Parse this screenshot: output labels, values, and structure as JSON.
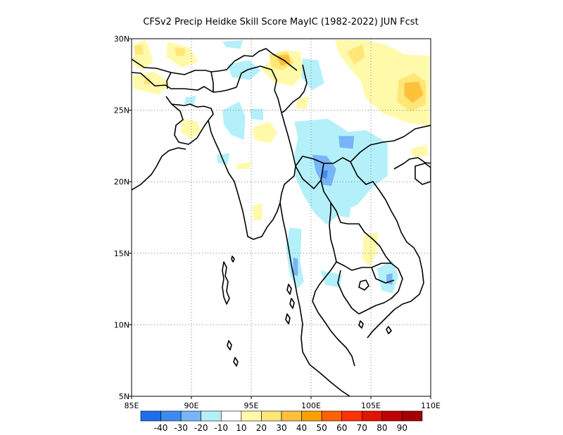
{
  "title": "CFSv2 Precip Heidke Skill Score MayIC (1982-2022) JUN Fcst",
  "map": {
    "lon_range": [
      85,
      110
    ],
    "lat_range": [
      5,
      30
    ],
    "x_ticks": [
      {
        "value": 85,
        "label": "85E"
      },
      {
        "value": 90,
        "label": "90E"
      },
      {
        "value": 95,
        "label": "95E"
      },
      {
        "value": 100,
        "label": "100E"
      },
      {
        "value": 105,
        "label": "105E"
      },
      {
        "value": 110,
        "label": "110E"
      }
    ],
    "y_ticks": [
      {
        "value": 30,
        "label": "30N"
      },
      {
        "value": 25,
        "label": "25N"
      },
      {
        "value": 20,
        "label": "20N"
      },
      {
        "value": 15,
        "label": "15N"
      },
      {
        "value": 10,
        "label": "10N"
      },
      {
        "value": 5,
        "label": "5N"
      }
    ],
    "grid": "dotted"
  },
  "colorbar": {
    "labels": [
      "-40",
      "-30",
      "-20",
      "-10",
      "10",
      "20",
      "30",
      "40",
      "50",
      "60",
      "70",
      "80",
      "90"
    ],
    "colors": [
      "#1e6ee8",
      "#3c8cf0",
      "#78b4f8",
      "#b4f0fa",
      "#ffffff",
      "#fffaaa",
      "#ffe678",
      "#ffc03c",
      "#ffa000",
      "#ff6000",
      "#ff3200",
      "#e11400",
      "#c00000",
      "#a50000"
    ]
  },
  "skill_regions": [
    {
      "level": 10,
      "color": "#fffaaa",
      "pts": [
        [
          85.3,
          29.7
        ],
        [
          86.2,
          29.9
        ],
        [
          86.8,
          28.4
        ],
        [
          85.9,
          27.8
        ],
        [
          85.1,
          28.2
        ]
      ]
    },
    {
      "level": 10,
      "color": "#fffaaa",
      "pts": [
        [
          88.0,
          29.8
        ],
        [
          89.8,
          29.4
        ],
        [
          90.6,
          28.4
        ],
        [
          89.2,
          28.0
        ],
        [
          87.9,
          28.7
        ]
      ]
    },
    {
      "level": 10,
      "color": "#fffaaa",
      "pts": [
        [
          85.1,
          27.4
        ],
        [
          86.9,
          27.7
        ],
        [
          88.2,
          26.9
        ],
        [
          87.3,
          26.1
        ],
        [
          85.2,
          26.5
        ]
      ]
    },
    {
      "level": 10,
      "color": "#fffaaa",
      "pts": [
        [
          89.3,
          24.4
        ],
        [
          90.5,
          24.2
        ],
        [
          90.8,
          23.5
        ],
        [
          89.9,
          23.0
        ],
        [
          89.1,
          23.5
        ]
      ]
    },
    {
      "level": 10,
      "color": "#fffaaa",
      "pts": [
        [
          95.1,
          23.8
        ],
        [
          96.5,
          24.2
        ],
        [
          97.2,
          23.4
        ],
        [
          96.6,
          22.7
        ],
        [
          95.3,
          22.9
        ]
      ]
    },
    {
      "level": 10,
      "color": "#fffaaa",
      "pts": [
        [
          95.8,
          27.9
        ],
        [
          97.6,
          29.2
        ],
        [
          99.1,
          29.1
        ],
        [
          99.4,
          27.6
        ],
        [
          98.5,
          26.7
        ],
        [
          97.0,
          26.9
        ]
      ]
    },
    {
      "level": 10,
      "color": "#fffaaa",
      "pts": [
        [
          98.9,
          25.8
        ],
        [
          99.9,
          26.0
        ],
        [
          99.6,
          25.1
        ],
        [
          98.7,
          25.1
        ]
      ]
    },
    {
      "level": 10,
      "color": "#fffaaa",
      "pts": [
        [
          93.8,
          21.2
        ],
        [
          95.0,
          21.4
        ],
        [
          94.8,
          20.9
        ],
        [
          93.7,
          20.9
        ]
      ]
    },
    {
      "level": 10,
      "color": "#fffaaa",
      "pts": [
        [
          95.1,
          18.3
        ],
        [
          95.9,
          18.5
        ],
        [
          95.9,
          17.3
        ],
        [
          95.2,
          17.3
        ]
      ]
    },
    {
      "level": 10,
      "color": "#fffaaa",
      "pts": [
        [
          101.2,
          22.8
        ],
        [
          102.1,
          23.0
        ],
        [
          101.9,
          22.2
        ],
        [
          101.0,
          22.3
        ]
      ]
    },
    {
      "level": 10,
      "color": "#fffaaa",
      "pts": [
        [
          102.0,
          29.9
        ],
        [
          104.5,
          29.9
        ],
        [
          106.2,
          29.6
        ],
        [
          107.8,
          28.9
        ],
        [
          109.9,
          28.8
        ],
        [
          109.9,
          23.9
        ],
        [
          108.2,
          24.1
        ],
        [
          106.0,
          24.8
        ],
        [
          104.6,
          25.8
        ],
        [
          104.2,
          27.0
        ],
        [
          103.0,
          28.2
        ],
        [
          102.3,
          29.0
        ]
      ]
    },
    {
      "level": 10,
      "color": "#fffaaa",
      "pts": [
        [
          104.4,
          16.2
        ],
        [
          105.6,
          16.5
        ],
        [
          105.5,
          15.1
        ],
        [
          104.9,
          14.1
        ],
        [
          104.3,
          14.6
        ]
      ]
    },
    {
      "level": 10,
      "color": "#fffaaa",
      "pts": [
        [
          108.3,
          22.3
        ],
        [
          109.7,
          22.6
        ],
        [
          109.8,
          21.8
        ],
        [
          108.6,
          21.7
        ]
      ]
    },
    {
      "level": 20,
      "color": "#ffe678",
      "pts": [
        [
          85.2,
          29.5
        ],
        [
          85.9,
          29.6
        ],
        [
          86.0,
          28.9
        ],
        [
          85.3,
          28.9
        ]
      ]
    },
    {
      "level": 20,
      "color": "#ffe678",
      "pts": [
        [
          88.6,
          29.4
        ],
        [
          89.5,
          29.3
        ],
        [
          89.4,
          28.8
        ],
        [
          88.7,
          28.8
        ]
      ]
    },
    {
      "level": 20,
      "color": "#ffe678",
      "pts": [
        [
          86.1,
          27.2
        ],
        [
          86.6,
          27.2
        ],
        [
          86.5,
          26.8
        ],
        [
          86.0,
          26.8
        ]
      ]
    },
    {
      "level": 20,
      "color": "#ffe678",
      "pts": [
        [
          96.5,
          28.9
        ],
        [
          98.0,
          29.1
        ],
        [
          98.6,
          28.3
        ],
        [
          97.6,
          27.8
        ],
        [
          96.7,
          28.0
        ]
      ]
    },
    {
      "level": 20,
      "color": "#ffe678",
      "pts": [
        [
          103.0,
          29.1
        ],
        [
          104.3,
          29.6
        ],
        [
          104.5,
          28.7
        ],
        [
          103.6,
          28.2
        ]
      ]
    },
    {
      "level": 20,
      "color": "#ffe678",
      "pts": [
        [
          107.3,
          27.1
        ],
        [
          108.6,
          27.6
        ],
        [
          109.6,
          27.0
        ],
        [
          109.6,
          25.4
        ],
        [
          108.3,
          24.9
        ],
        [
          107.2,
          25.6
        ]
      ]
    },
    {
      "level": 30,
      "color": "#ffc03c",
      "pts": [
        [
          97.1,
          28.8
        ],
        [
          98.1,
          28.9
        ],
        [
          98.3,
          28.3
        ],
        [
          97.5,
          28.1
        ]
      ]
    },
    {
      "level": 30,
      "color": "#ffc03c",
      "pts": [
        [
          107.8,
          26.9
        ],
        [
          109.0,
          27.0
        ],
        [
          109.4,
          26.1
        ],
        [
          108.5,
          25.5
        ],
        [
          107.8,
          26.0
        ]
      ]
    },
    {
      "level": -10,
      "color": "#b4f0fa",
      "pts": [
        [
          93.0,
          28.2
        ],
        [
          94.8,
          28.5
        ],
        [
          95.8,
          27.8
        ],
        [
          94.9,
          27.1
        ],
        [
          93.4,
          27.3
        ]
      ]
    },
    {
      "level": -10,
      "color": "#b4f0fa",
      "pts": [
        [
          92.6,
          29.8
        ],
        [
          94.3,
          29.9
        ],
        [
          94.1,
          29.3
        ],
        [
          92.9,
          29.4
        ]
      ]
    },
    {
      "level": -10,
      "color": "#b4f0fa",
      "pts": [
        [
          99.3,
          28.6
        ],
        [
          100.6,
          28.5
        ],
        [
          101.1,
          26.9
        ],
        [
          100.1,
          26.4
        ],
        [
          99.2,
          27.3
        ]
      ]
    },
    {
      "level": -10,
      "color": "#b4f0fa",
      "pts": [
        [
          92.6,
          25.0
        ],
        [
          94.0,
          25.6
        ],
        [
          94.5,
          24.6
        ],
        [
          94.4,
          22.9
        ],
        [
          93.3,
          23.3
        ],
        [
          92.7,
          24.0
        ]
      ]
    },
    {
      "level": -10,
      "color": "#b4f0fa",
      "pts": [
        [
          89.5,
          25.9
        ],
        [
          90.4,
          26.0
        ],
        [
          90.2,
          25.4
        ],
        [
          89.4,
          25.4
        ]
      ]
    },
    {
      "level": -10,
      "color": "#b4f0fa",
      "pts": [
        [
          94.9,
          25.1
        ],
        [
          96.0,
          25.1
        ],
        [
          96.0,
          24.3
        ],
        [
          95.0,
          24.4
        ]
      ]
    },
    {
      "level": -10,
      "color": "#b4f0fa",
      "pts": [
        [
          92.1,
          21.9
        ],
        [
          93.2,
          22.0
        ],
        [
          93.0,
          21.2
        ],
        [
          92.2,
          21.3
        ]
      ]
    },
    {
      "level": -10,
      "color": "#b4f0fa",
      "pts": [
        [
          98.6,
          24.2
        ],
        [
          101.4,
          24.4
        ],
        [
          103.1,
          23.5
        ],
        [
          104.6,
          23.6
        ],
        [
          106.4,
          22.7
        ],
        [
          106.4,
          20.4
        ],
        [
          105.1,
          19.6
        ],
        [
          103.9,
          18.4
        ],
        [
          102.6,
          17.9
        ],
        [
          101.3,
          17.0
        ],
        [
          100.3,
          17.8
        ],
        [
          99.4,
          19.0
        ],
        [
          98.7,
          20.3
        ],
        [
          98.6,
          21.8
        ],
        [
          98.9,
          23.1
        ]
      ]
    },
    {
      "level": -10,
      "color": "#b4f0fa",
      "pts": [
        [
          98.2,
          16.8
        ],
        [
          99.2,
          16.7
        ],
        [
          99.1,
          14.4
        ],
        [
          99.4,
          13.0
        ],
        [
          98.8,
          12.5
        ],
        [
          98.2,
          13.6
        ],
        [
          97.9,
          15.4
        ]
      ]
    },
    {
      "level": -10,
      "color": "#b4f0fa",
      "pts": [
        [
          100.8,
          13.8
        ],
        [
          102.6,
          13.5
        ],
        [
          102.4,
          12.6
        ],
        [
          101.2,
          12.8
        ]
      ]
    },
    {
      "level": -10,
      "color": "#b4f0fa",
      "pts": [
        [
          105.5,
          13.9
        ],
        [
          106.8,
          14.5
        ],
        [
          107.3,
          13.4
        ],
        [
          106.8,
          12.2
        ],
        [
          105.9,
          12.4
        ]
      ]
    },
    {
      "level": -10,
      "color": "#b4f0fa",
      "pts": [
        [
          102.4,
          18.5
        ],
        [
          103.4,
          18.6
        ],
        [
          103.2,
          17.5
        ],
        [
          102.4,
          17.6
        ]
      ]
    },
    {
      "level": -20,
      "color": "#78b4f8",
      "pts": [
        [
          100.1,
          21.9
        ],
        [
          101.3,
          21.8
        ],
        [
          102.1,
          20.9
        ],
        [
          101.7,
          19.7
        ],
        [
          101.0,
          19.8
        ],
        [
          100.4,
          20.7
        ]
      ]
    },
    {
      "level": -20,
      "color": "#78b4f8",
      "pts": [
        [
          102.3,
          23.2
        ],
        [
          103.6,
          23.2
        ],
        [
          103.5,
          22.3
        ],
        [
          102.4,
          22.4
        ]
      ]
    },
    {
      "level": -20,
      "color": "#78b4f8",
      "pts": [
        [
          98.5,
          14.7
        ],
        [
          98.9,
          14.6
        ],
        [
          98.9,
          13.4
        ],
        [
          98.5,
          13.5
        ]
      ]
    },
    {
      "level": -20,
      "color": "#78b4f8",
      "pts": [
        [
          106.3,
          13.5
        ],
        [
          106.8,
          13.6
        ],
        [
          106.8,
          12.8
        ],
        [
          106.3,
          12.9
        ]
      ]
    },
    {
      "level": -30,
      "color": "#3c8cf0",
      "pts": [
        [
          100.9,
          20.8
        ],
        [
          101.4,
          20.8
        ],
        [
          101.3,
          20.2
        ],
        [
          100.9,
          20.3
        ]
      ]
    }
  ]
}
